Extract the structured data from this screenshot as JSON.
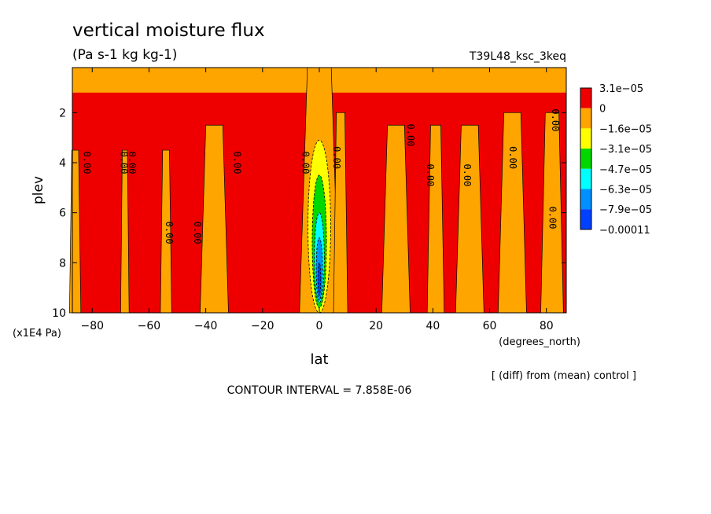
{
  "chart_data": {
    "type": "heatmap",
    "title": "vertical moisture flux",
    "subtitle": "(Pa s-1 kg kg-1)",
    "run_label": "T39L48_ksc_3keq",
    "xlabel": "lat",
    "xunits": "(degrees_north)",
    "ylabel": "plev",
    "yunits": "(x1E4 Pa)",
    "note": "[ (diff) from (mean) control ]",
    "contour_interval": "CONTOUR INTERVAL = 7.858E-06",
    "xlim": [
      -87,
      87
    ],
    "ylim": [
      10,
      0.2
    ],
    "x_ticks": [
      -80,
      -60,
      -40,
      -20,
      0,
      20,
      40,
      60,
      80
    ],
    "y_ticks": [
      2,
      4,
      6,
      8,
      10
    ],
    "legend": {
      "placement": "right",
      "labels": [
        "3.1e-05",
        "0",
        "-1.6e-05",
        "-3.1e-05",
        "-4.7e-05",
        "-6.3e-05",
        "-7.9e-05",
        "-0.00011"
      ],
      "colors": [
        "#ee0000",
        "#ffa500",
        "#ffff00",
        "#00d800",
        "#00ffff",
        "#0090ff",
        "#0040ff"
      ]
    },
    "regions": {
      "positive_color": "#ee0000",
      "neutral_color": "#ffa500",
      "orange_bands": [
        {
          "x": -88,
          "w": 4,
          "y0": 3.5,
          "y1": 10
        },
        {
          "x": -70,
          "w": 3,
          "y0": 3.5,
          "y1": 10
        },
        {
          "x": -56,
          "w": 4,
          "y0": 3.5,
          "y1": 10
        },
        {
          "x": -42,
          "w": 10,
          "y0": 2.5,
          "y1": 10
        },
        {
          "x": -7,
          "w": 14,
          "y0": 0.2,
          "y1": 10
        },
        {
          "x": 5,
          "w": 5,
          "y0": 2.0,
          "y1": 10
        },
        {
          "x": 22,
          "w": 10,
          "y0": 2.5,
          "y1": 10
        },
        {
          "x": 38,
          "w": 6,
          "y0": 2.5,
          "y1": 10
        },
        {
          "x": 48,
          "w": 10,
          "y0": 2.5,
          "y1": 10
        },
        {
          "x": 63,
          "w": 10,
          "y0": 2.0,
          "y1": 10
        },
        {
          "x": 78,
          "w": 8,
          "y0": 2.0,
          "y1": 10
        }
      ],
      "orange_top": [
        {
          "x": -87,
          "w": 174,
          "y0": 0.2,
          "y1": 1.2
        }
      ],
      "plume": [
        {
          "x": 0,
          "w": 8,
          "y0": 3.1,
          "y1": 10,
          "color": "#ffff00"
        },
        {
          "x": 0,
          "w": 5,
          "y0": 4.5,
          "y1": 9.8,
          "color": "#00d800"
        },
        {
          "x": 0,
          "w": 3.5,
          "y0": 6.0,
          "y1": 9.6,
          "color": "#00ffff"
        },
        {
          "x": 0,
          "w": 2.2,
          "y0": 7.0,
          "y1": 9.5,
          "color": "#0090ff"
        },
        {
          "x": 0,
          "w": 1.0,
          "y0": 8.0,
          "y1": 9.3,
          "color": "#0040ff"
        }
      ]
    },
    "contour_labels": [
      {
        "text": "0.00",
        "x": -83,
        "y": 4.0
      },
      {
        "text": "0.00",
        "x": -70,
        "y": 4.0
      },
      {
        "text": "0.00",
        "x": -67,
        "y": 4.0
      },
      {
        "text": "0.00",
        "x": -54,
        "y": 6.8
      },
      {
        "text": "0.00",
        "x": -44,
        "y": 6.8
      },
      {
        "text": "0.00",
        "x": -30,
        "y": 4.0
      },
      {
        "text": "0.00",
        "x": -6,
        "y": 4.0
      },
      {
        "text": "0.00",
        "x": 5,
        "y": 3.8
      },
      {
        "text": "0.00",
        "x": 31,
        "y": 2.9
      },
      {
        "text": "0.00",
        "x": 38,
        "y": 4.5
      },
      {
        "text": "0.00",
        "x": 51,
        "y": 4.5
      },
      {
        "text": "0.00",
        "x": 67,
        "y": 3.8
      },
      {
        "text": "0.00",
        "x": 81,
        "y": 6.2
      },
      {
        "text": "0.00",
        "x": 82,
        "y": 2.3
      }
    ]
  }
}
